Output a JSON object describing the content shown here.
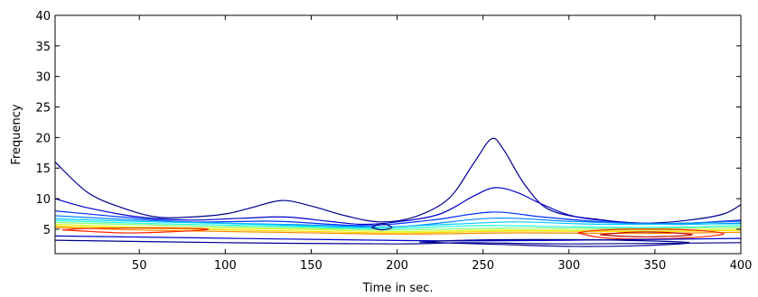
{
  "chart_data": {
    "type": "contour",
    "title": "",
    "xlabel": "Time in sec.",
    "ylabel": "Frequency",
    "xlim": [
      1,
      400
    ],
    "ylim": [
      1,
      40
    ],
    "xticks": [
      50,
      100,
      150,
      200,
      250,
      300,
      350,
      400
    ],
    "yticks": [
      5,
      10,
      15,
      20,
      25,
      30,
      35,
      40
    ],
    "grid": false,
    "colormap": "jet",
    "contours": [
      {
        "level": 1,
        "color": "#00008f",
        "points": [
          [
            1,
            16
          ],
          [
            20,
            11
          ],
          [
            40,
            8.5
          ],
          [
            60,
            7
          ],
          [
            80,
            7
          ],
          [
            100,
            7.5
          ],
          [
            115,
            8.5
          ],
          [
            133,
            9.7
          ],
          [
            150,
            8.8
          ],
          [
            170,
            7.2
          ],
          [
            190,
            6.2
          ],
          [
            210,
            7
          ],
          [
            230,
            10
          ],
          [
            245,
            16
          ],
          [
            255,
            19.8
          ],
          [
            262,
            18
          ],
          [
            275,
            12
          ],
          [
            290,
            8
          ],
          [
            320,
            6.5
          ],
          [
            345,
            6
          ],
          [
            370,
            6.5
          ],
          [
            390,
            7.5
          ],
          [
            400,
            9
          ]
        ]
      },
      {
        "level": 2,
        "color": "#0000cc",
        "points": [
          [
            1,
            10
          ],
          [
            20,
            8.5
          ],
          [
            50,
            7
          ],
          [
            80,
            6.5
          ],
          [
            110,
            6.8
          ],
          [
            135,
            7
          ],
          [
            160,
            6.3
          ],
          [
            180,
            5.8
          ],
          [
            200,
            6.2
          ],
          [
            225,
            7.5
          ],
          [
            245,
            10.5
          ],
          [
            257,
            11.8
          ],
          [
            270,
            11
          ],
          [
            285,
            9
          ],
          [
            305,
            7
          ],
          [
            340,
            6
          ],
          [
            370,
            6
          ],
          [
            400,
            6.5
          ]
        ]
      },
      {
        "level": 3,
        "color": "#0033ff",
        "points": [
          [
            1,
            8
          ],
          [
            40,
            7
          ],
          [
            80,
            6.2
          ],
          [
            130,
            6.3
          ],
          [
            180,
            5.6
          ],
          [
            220,
            6.5
          ],
          [
            255,
            7.8
          ],
          [
            285,
            7
          ],
          [
            320,
            6.2
          ],
          [
            360,
            5.8
          ],
          [
            400,
            6
          ]
        ]
      },
      {
        "level": 4,
        "color": "#0088ff",
        "points": [
          [
            1,
            7.2
          ],
          [
            50,
            6.5
          ],
          [
            100,
            6
          ],
          [
            150,
            5.7
          ],
          [
            200,
            5.4
          ],
          [
            255,
            6.8
          ],
          [
            300,
            6.3
          ],
          [
            350,
            5.9
          ],
          [
            400,
            6.3
          ]
        ]
      },
      {
        "level": 5,
        "color": "#00ccff",
        "points": [
          [
            1,
            6.7
          ],
          [
            60,
            6.2
          ],
          [
            120,
            5.8
          ],
          [
            180,
            5.3
          ],
          [
            230,
            5.8
          ],
          [
            270,
            6.2
          ],
          [
            320,
            5.8
          ],
          [
            400,
            5.9
          ]
        ]
      },
      {
        "level": 6,
        "color": "#22ffdd",
        "points": [
          [
            1,
            6.4
          ],
          [
            60,
            5.9
          ],
          [
            130,
            5.5
          ],
          [
            190,
            5.1
          ],
          [
            250,
            5.6
          ],
          [
            300,
            5.4
          ],
          [
            350,
            5.3
          ],
          [
            400,
            5.6
          ]
        ]
      },
      {
        "level": 7,
        "color": "#88ff77",
        "points": [
          [
            1,
            6.1
          ],
          [
            70,
            5.6
          ],
          [
            140,
            5.2
          ],
          [
            200,
            4.9
          ],
          [
            260,
            5.2
          ],
          [
            330,
            5.1
          ],
          [
            400,
            5.3
          ]
        ]
      },
      {
        "level": 8,
        "color": "#ddff22",
        "points": [
          [
            1,
            5.8
          ],
          [
            60,
            5.3
          ],
          [
            140,
            5
          ],
          [
            200,
            4.6
          ],
          [
            260,
            4.9
          ],
          [
            330,
            4.8
          ],
          [
            400,
            5
          ]
        ]
      },
      {
        "level": 9,
        "color": "#ffdd00",
        "points": [
          [
            1,
            5.5
          ],
          [
            60,
            5.1
          ],
          [
            140,
            4.7
          ],
          [
            200,
            4.4
          ],
          [
            270,
            4.7
          ],
          [
            340,
            4.6
          ],
          [
            400,
            4.8
          ]
        ]
      },
      {
        "level": 10,
        "color": "#ff8800",
        "points": [
          [
            1,
            5.3
          ],
          [
            60,
            4.8
          ],
          [
            130,
            4.5
          ],
          [
            200,
            4.2
          ],
          [
            270,
            4.4
          ],
          [
            340,
            4.3
          ],
          [
            400,
            4.5
          ]
        ]
      },
      {
        "level": 11,
        "color": "#ff2200",
        "points": [
          [
            5,
            4.9
          ],
          [
            40,
            4.4
          ],
          [
            70,
            4.6
          ],
          [
            90,
            5
          ],
          [
            60,
            5.2
          ],
          [
            20,
            5.1
          ],
          [
            5,
            4.9
          ]
        ]
      },
      {
        "level": 11,
        "color": "#ff2200",
        "points": [
          [
            305,
            4.4
          ],
          [
            320,
            3.6
          ],
          [
            345,
            3.4
          ],
          [
            375,
            3.7
          ],
          [
            390,
            4.3
          ],
          [
            370,
            4.9
          ],
          [
            340,
            5
          ],
          [
            315,
            4.8
          ],
          [
            305,
            4.4
          ]
        ]
      },
      {
        "level": 12,
        "color": "#bb0000",
        "points": [
          [
            318,
            4.1
          ],
          [
            335,
            3.8
          ],
          [
            355,
            3.8
          ],
          [
            372,
            4.1
          ],
          [
            355,
            4.5
          ],
          [
            335,
            4.5
          ],
          [
            318,
            4.1
          ]
        ]
      },
      {
        "level": 2,
        "color": "#0000cc",
        "points": [
          [
            1,
            3.9
          ],
          [
            80,
            3.6
          ],
          [
            160,
            3.3
          ],
          [
            230,
            3.1
          ],
          [
            300,
            3.2
          ],
          [
            400,
            3.5
          ]
        ]
      },
      {
        "level": 1,
        "color": "#00008f",
        "points": [
          [
            1,
            3.2
          ],
          [
            100,
            2.8
          ],
          [
            200,
            2.6
          ],
          [
            240,
            2.8
          ],
          [
            300,
            2.6
          ],
          [
            400,
            2.8
          ]
        ]
      },
      {
        "level": 1,
        "color": "#00008f",
        "points": [
          [
            213,
            2.9
          ],
          [
            260,
            2.5
          ],
          [
            300,
            2.2
          ],
          [
            340,
            2.3
          ],
          [
            370,
            2.8
          ],
          [
            330,
            3.2
          ],
          [
            280,
            3.3
          ],
          [
            240,
            3.2
          ],
          [
            213,
            2.9
          ]
        ]
      },
      {
        "level": 0,
        "color": "#000080",
        "points": [
          [
            185,
            5.3
          ],
          [
            191,
            5.9
          ],
          [
            197,
            5.3
          ],
          [
            191,
            4.9
          ],
          [
            185,
            5.3
          ]
        ]
      }
    ]
  }
}
